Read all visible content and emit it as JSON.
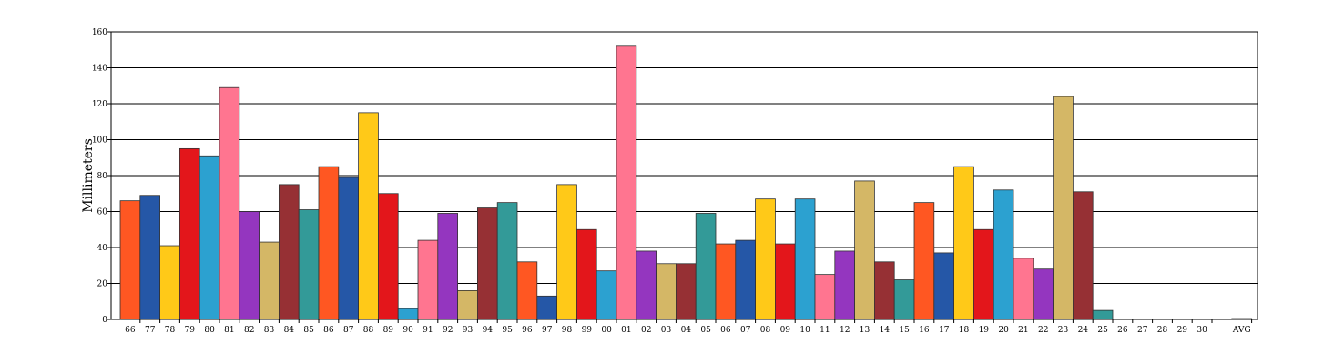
{
  "chart_data": {
    "type": "bar",
    "ylabel": "Millimeters",
    "xlabel": "",
    "ylim": [
      0,
      160
    ],
    "yticks": [
      0,
      20,
      40,
      60,
      80,
      100,
      120,
      140,
      160
    ],
    "grid": true,
    "categories": [
      "66",
      "77",
      "78",
      "79",
      "80",
      "81",
      "82",
      "83",
      "84",
      "85",
      "86",
      "87",
      "88",
      "89",
      "90",
      "91",
      "92",
      "93",
      "94",
      "95",
      "96",
      "97",
      "98",
      "99",
      "00",
      "01",
      "02",
      "03",
      "04",
      "05",
      "06",
      "07",
      "08",
      "09",
      "10",
      "11",
      "12",
      "13",
      "14",
      "15",
      "16",
      "17",
      "18",
      "19",
      "20",
      "21",
      "22",
      "23",
      "24",
      "25",
      "26",
      "27",
      "28",
      "29",
      "30",
      "AVG"
    ],
    "values": [
      66,
      69,
      41,
      95,
      91,
      129,
      60,
      43,
      75,
      61,
      85,
      79,
      115,
      70,
      6,
      44,
      59,
      16,
      62,
      65,
      32,
      13,
      75,
      50,
      27,
      152,
      38,
      31,
      31,
      59,
      42,
      44,
      67,
      42,
      67,
      25,
      38,
      77,
      32,
      22,
      65,
      37,
      85,
      50,
      72,
      34,
      28,
      124,
      71,
      5,
      0,
      0,
      0,
      0,
      0,
      0.5
    ],
    "palette": [
      "#ff5722",
      "#2557a7",
      "#ffc918",
      "#e3161b",
      "#2ca1d0",
      "#ff7590",
      "#9436bf",
      "#d4b766",
      "#963034",
      "#339a98"
    ]
  }
}
